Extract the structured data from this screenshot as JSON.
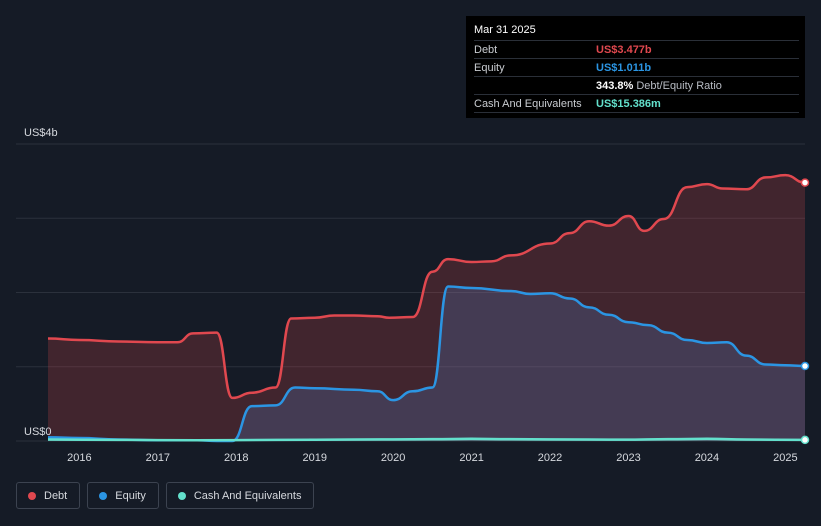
{
  "tooltip": {
    "date": "Mar 31 2025",
    "rows": [
      {
        "label": "Debt",
        "value": "US$3.477b"
      },
      {
        "label": "Equity",
        "value": "US$1.011b"
      },
      {
        "label": "",
        "value": "343.8%",
        "suffix": "Debt/Equity Ratio"
      },
      {
        "label": "Cash And Equivalents",
        "value": "US$15.386m"
      }
    ]
  },
  "legend": [
    {
      "label": "Debt",
      "color": "#e0484f"
    },
    {
      "label": "Equity",
      "color": "#2b95e3"
    },
    {
      "label": "Cash And Equivalents",
      "color": "#63e0cc"
    }
  ],
  "chart_data": {
    "type": "area",
    "ylabel_top": "US$4b",
    "ylabel_bottom": "US$0",
    "ylim": [
      0,
      4
    ],
    "xlim": [
      2015.6,
      2025.25
    ],
    "xticks": [
      "2016",
      "2017",
      "2018",
      "2019",
      "2020",
      "2021",
      "2022",
      "2023",
      "2024",
      "2025"
    ],
    "grid": true,
    "colors": {
      "debt": "#e0484f",
      "equity": "#2b95e3",
      "cash": "#63e0cc"
    },
    "series": [
      {
        "name": "Debt",
        "x": [
          2015.6,
          2016.0,
          2016.5,
          2017.0,
          2017.25,
          2017.45,
          2017.75,
          2017.95,
          2018.2,
          2018.5,
          2018.7,
          2019.0,
          2019.25,
          2019.5,
          2019.8,
          2019.95,
          2020.25,
          2020.5,
          2020.7,
          2021.0,
          2021.25,
          2021.5,
          2022.0,
          2022.25,
          2022.5,
          2022.75,
          2023.0,
          2023.2,
          2023.45,
          2023.75,
          2024.0,
          2024.2,
          2024.5,
          2024.75,
          2025.0,
          2025.25
        ],
        "y": [
          1.38,
          1.36,
          1.34,
          1.33,
          1.33,
          1.45,
          1.46,
          0.58,
          0.65,
          0.72,
          1.65,
          1.66,
          1.69,
          1.69,
          1.68,
          1.66,
          1.67,
          2.28,
          2.45,
          2.41,
          2.42,
          2.5,
          2.66,
          2.8,
          2.96,
          2.9,
          3.03,
          2.83,
          2.99,
          3.42,
          3.46,
          3.4,
          3.39,
          3.55,
          3.58,
          3.48
        ]
      },
      {
        "name": "Equity",
        "x": [
          2015.6,
          2016.0,
          2016.5,
          2017.0,
          2017.5,
          2017.75,
          2017.95,
          2018.2,
          2018.5,
          2018.75,
          2019.0,
          2019.5,
          2019.8,
          2020.0,
          2020.25,
          2020.5,
          2020.7,
          2021.0,
          2021.5,
          2021.75,
          2022.0,
          2022.25,
          2022.5,
          2022.75,
          2023.0,
          2023.25,
          2023.5,
          2023.75,
          2024.0,
          2024.25,
          2024.5,
          2024.75,
          2025.0,
          2025.25
        ],
        "y": [
          0.05,
          0.04,
          0.02,
          0.01,
          0.01,
          0.0,
          0.0,
          0.47,
          0.48,
          0.72,
          0.71,
          0.69,
          0.67,
          0.55,
          0.67,
          0.72,
          2.08,
          2.06,
          2.02,
          1.98,
          1.99,
          1.92,
          1.8,
          1.7,
          1.6,
          1.56,
          1.46,
          1.36,
          1.32,
          1.33,
          1.15,
          1.03,
          1.02,
          1.01
        ]
      },
      {
        "name": "Cash And Equivalents",
        "x": [
          2015.6,
          2016.5,
          2017.5,
          2018.5,
          2019.5,
          2020.5,
          2021.0,
          2021.5,
          2022.5,
          2023.0,
          2023.5,
          2024.0,
          2024.5,
          2025.25
        ],
        "y": [
          0.02,
          0.015,
          0.01,
          0.015,
          0.02,
          0.025,
          0.03,
          0.025,
          0.02,
          0.018,
          0.025,
          0.03,
          0.02,
          0.015
        ]
      }
    ]
  }
}
